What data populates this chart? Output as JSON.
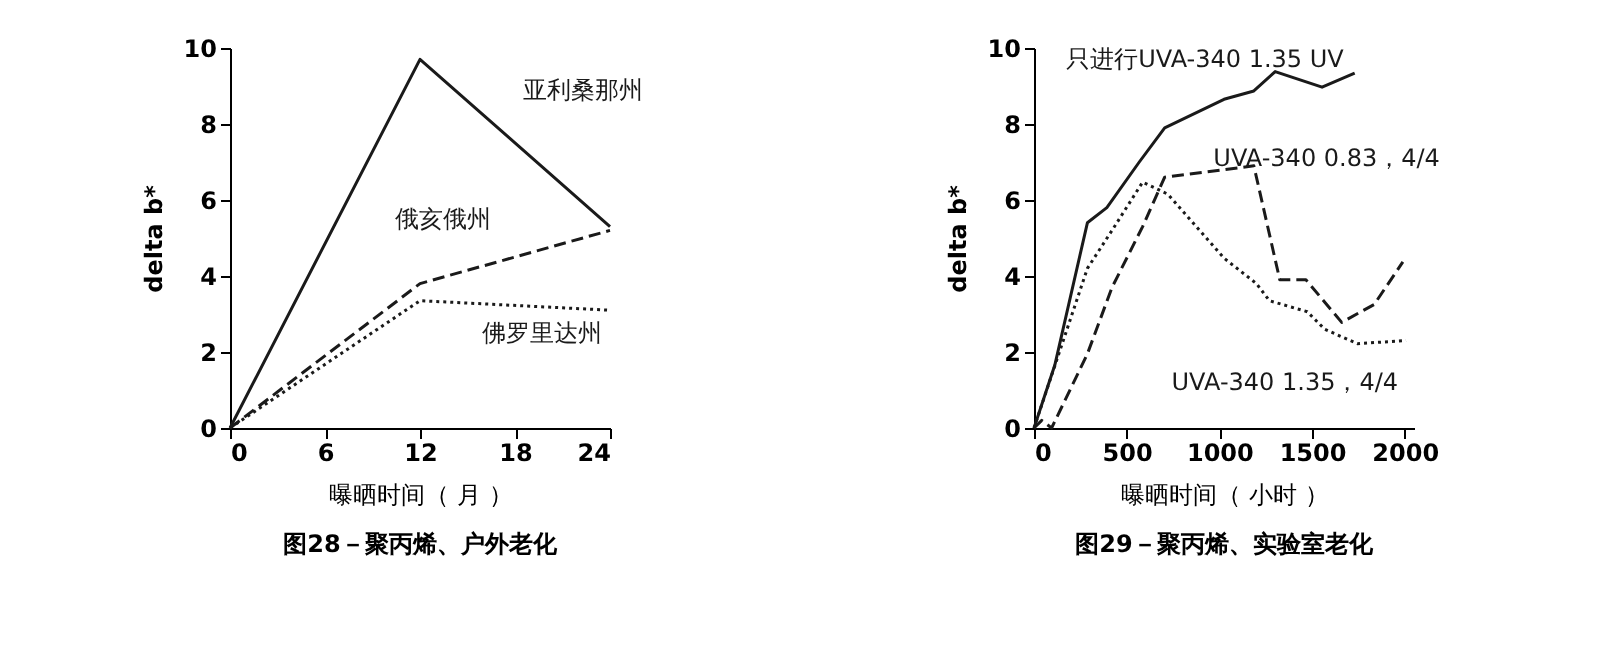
{
  "chart_data": [
    {
      "type": "line",
      "xlabel": "曝晒时间（ 月 ）",
      "ylabel": "delta  b*",
      "x": [
        0,
        12,
        24
      ],
      "xlim": [
        0,
        24
      ],
      "xticks": [
        0,
        6,
        12,
        18,
        24
      ],
      "ylim": [
        0,
        10
      ],
      "yticks": [
        0,
        2,
        4,
        6,
        8,
        10
      ],
      "grid": false,
      "annotations": [
        "图28－聚丙烯、户外老化"
      ],
      "series": [
        {
          "name": "亚利桑那州",
          "color": "#1a1a1a",
          "line_style": "solid",
          "values": [
            0,
            9.7,
            5.3
          ]
        },
        {
          "name": "俄亥俄州",
          "color": "#1a1a1a",
          "line_style": "dashed",
          "values": [
            0,
            3.8,
            5.2
          ]
        },
        {
          "name": "佛罗里达州",
          "color": "#1a1a1a",
          "line_style": "dotted",
          "values": [
            0,
            3.35,
            3.1
          ]
        }
      ]
    },
    {
      "type": "line",
      "xlabel": "曝晒时间（ 小时 ）",
      "ylabel": "delta  b*",
      "xlim": [
        0,
        2050
      ],
      "xticks": [
        0,
        500,
        1000,
        1500,
        2000
      ],
      "ylim": [
        0,
        10
      ],
      "yticks": [
        0,
        2,
        4,
        6,
        8,
        10
      ],
      "grid": false,
      "annotations": [
        "图29－聚丙烯、实验室老化"
      ],
      "series": [
        {
          "name": "只进行UVA-340 1.35 UV",
          "color": "#1a1a1a",
          "line_style": "solid",
          "x": [
            0,
            112,
            288,
            393,
            568,
            705,
            1025,
            1186,
            1301,
            1554,
            1730
          ],
          "values": [
            0,
            1.65,
            5.4,
            5.8,
            7.0,
            7.9,
            8.65,
            8.87,
            9.38,
            8.97,
            9.34
          ]
        },
        {
          "name": "UVA-340  0.83，4/4",
          "color": "#1a1a1a",
          "line_style": "dashed",
          "x": [
            0,
            42,
            95,
            288,
            421,
            586,
            705,
            1186,
            1326,
            1467,
            1660,
            1835,
            1990
          ],
          "values": [
            0,
            0.2,
            0,
            1.95,
            3.7,
            5.3,
            6.6,
            6.9,
            3.9,
            3.9,
            2.78,
            3.25,
            4.37
          ]
        },
        {
          "name": "UVA-340  1.35，4/4",
          "color": "#1a1a1a",
          "line_style": "dotted",
          "x": [
            0,
            288,
            421,
            586,
            723,
            1025,
            1200,
            1270,
            1474,
            1568,
            1744,
            2007
          ],
          "values": [
            0,
            4.2,
            5.2,
            6.47,
            6.15,
            4.47,
            3.8,
            3.35,
            3.06,
            2.6,
            2.22,
            2.3
          ]
        }
      ]
    }
  ]
}
